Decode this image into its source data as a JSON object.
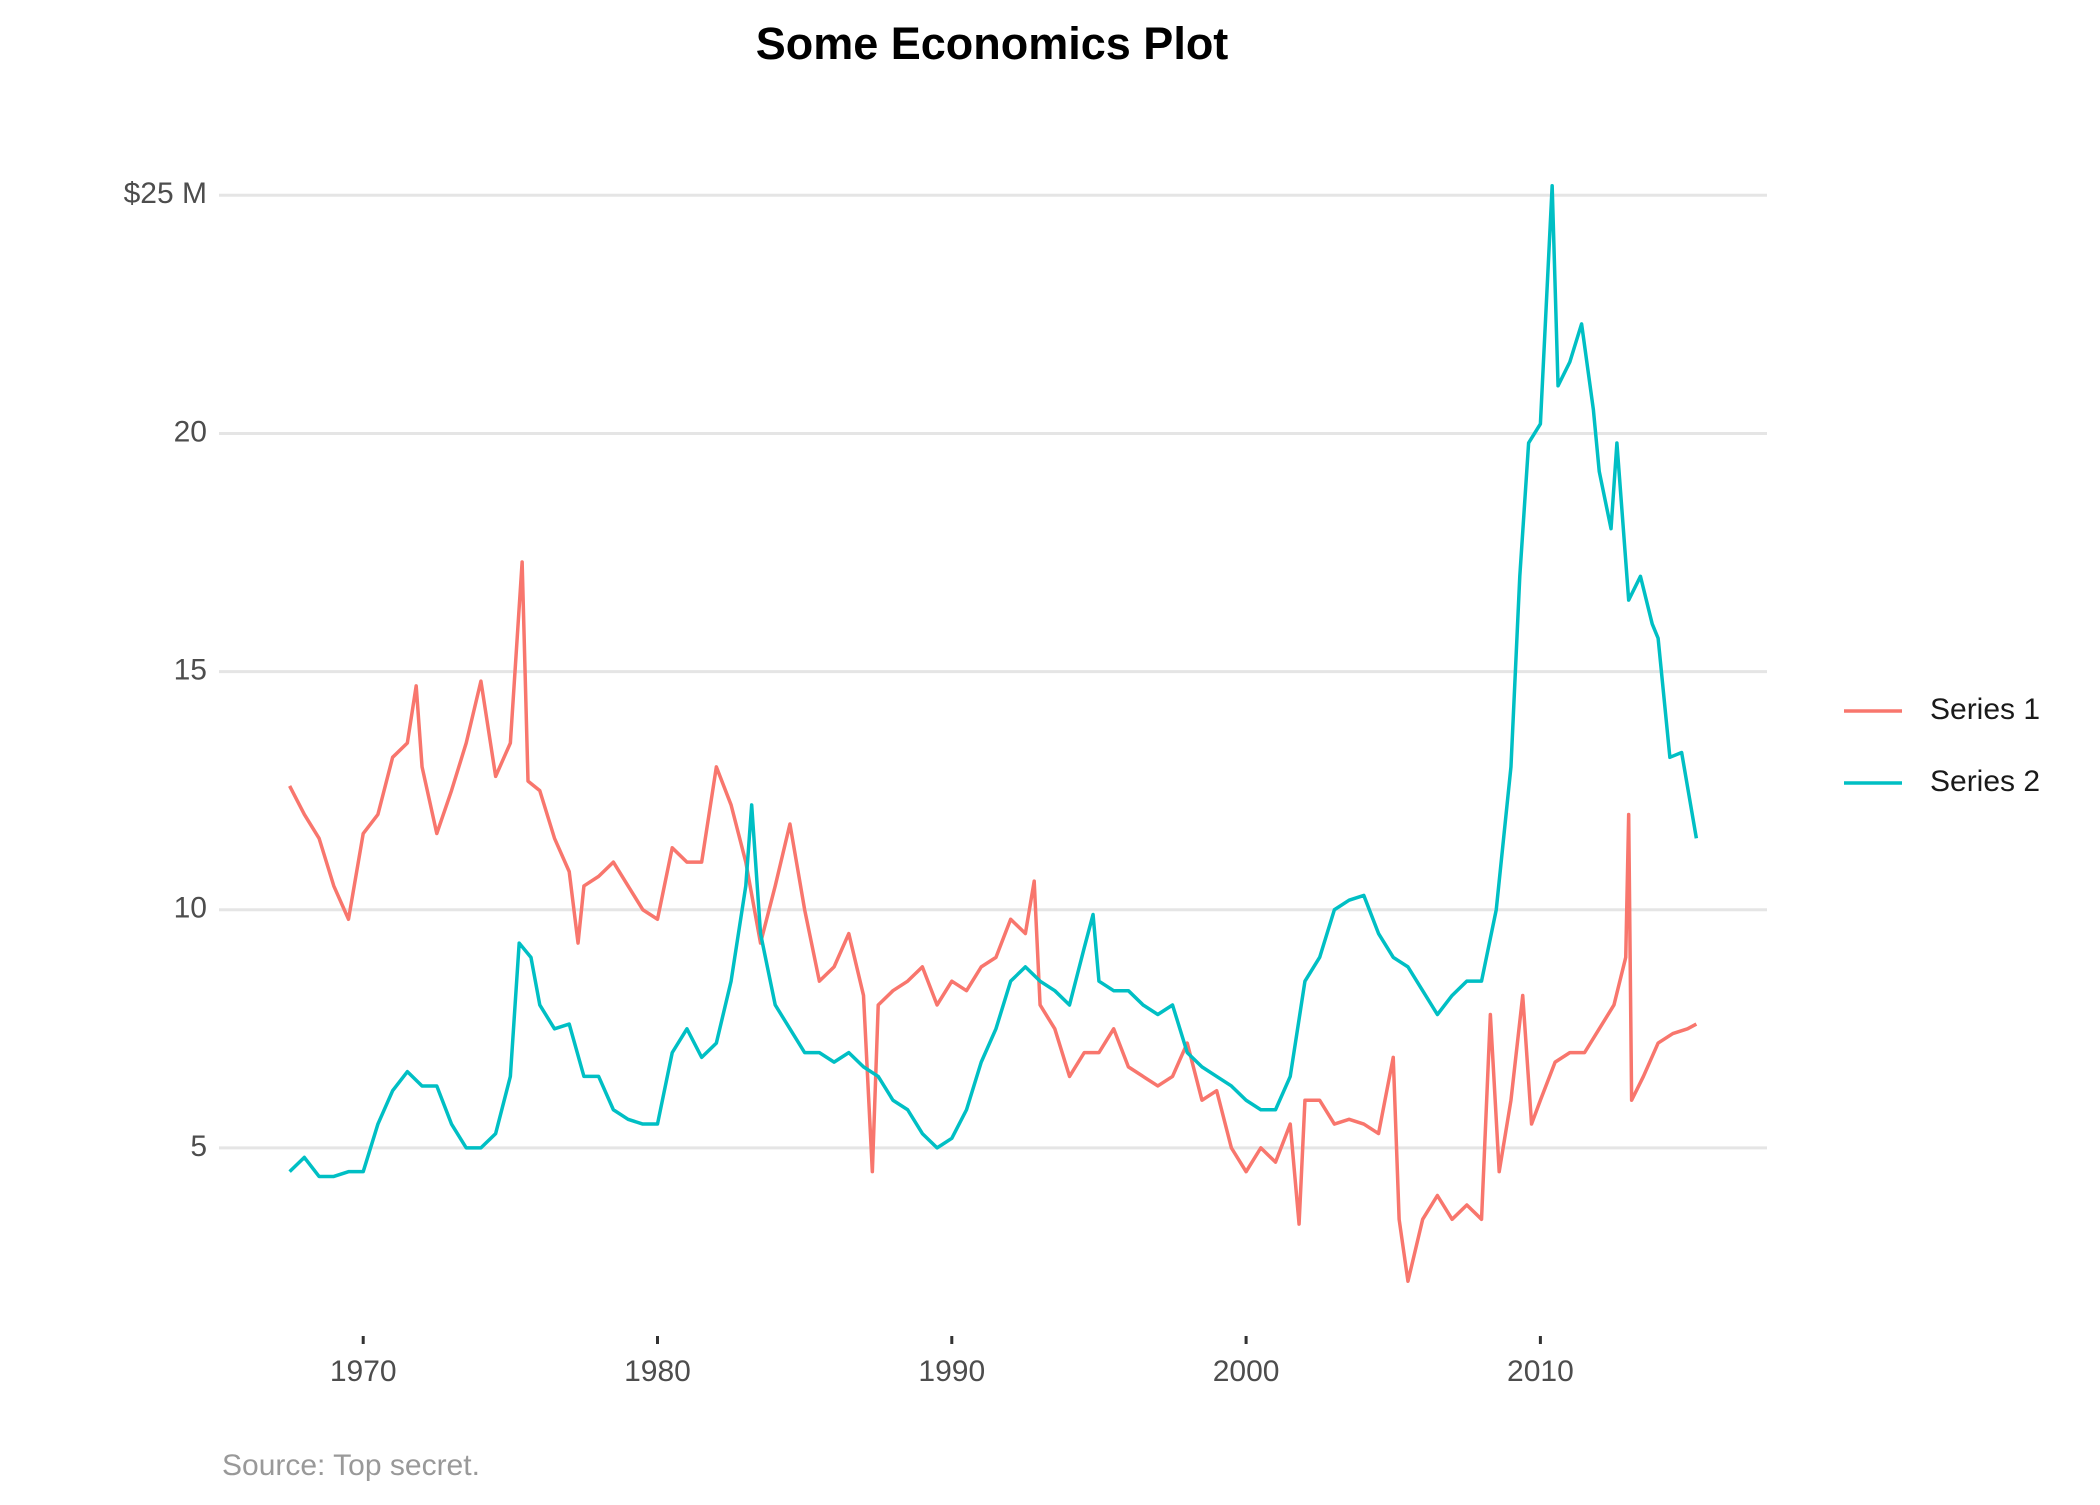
{
  "chart_data": {
    "type": "line",
    "title": "Some Economics Plot",
    "caption": "Source: Top secret.",
    "xlim": [
      1965.1,
      2017.7
    ],
    "xticks": [
      1970,
      1980,
      1990,
      2000,
      2010
    ],
    "ylim": [
      1.05,
      26.35
    ],
    "yticks": [
      5,
      10,
      15,
      20,
      {
        "value": 25,
        "label": "$25 M"
      }
    ],
    "grid": true,
    "legend": "right",
    "series": [
      {
        "name": "Series 1",
        "color": "#f8766d",
        "x": [
          1967.5,
          1968,
          1968.5,
          1969,
          1969.5,
          1970,
          1970.5,
          1971,
          1971.5,
          1971.8,
          1972,
          1972.5,
          1973,
          1973.5,
          1974,
          1974.5,
          1975,
          1975.4,
          1975.6,
          1976,
          1976.5,
          1977,
          1977.3,
          1977.5,
          1978,
          1978.5,
          1979,
          1979.5,
          1980,
          1980.5,
          1981,
          1981.5,
          1982,
          1982.5,
          1983,
          1983.5,
          1984,
          1984.5,
          1985,
          1985.5,
          1986,
          1986.5,
          1987,
          1987.3,
          1987.5,
          1988,
          1988.5,
          1989,
          1989.5,
          1990,
          1990.5,
          1991,
          1991.5,
          1992,
          1992.5,
          1992.8,
          1993,
          1993.5,
          1994,
          1994.5,
          1995,
          1995.5,
          1996,
          1996.5,
          1997,
          1997.5,
          1998,
          1998.5,
          1999,
          1999.5,
          2000,
          2000.5,
          2001,
          2001.5,
          2001.8,
          2002,
          2002.5,
          2003,
          2003.5,
          2004,
          2004.5,
          2005,
          2005.2,
          2005.5,
          2006,
          2006.5,
          2007,
          2007.5,
          2008,
          2008.3,
          2008.6,
          2009,
          2009.4,
          2009.7,
          2010,
          2010.5,
          2011,
          2011.5,
          2012,
          2012.5,
          2012.9,
          2013,
          2013.1,
          2013.5,
          2014,
          2014.5,
          2015,
          2015.3
        ],
        "values": [
          12.6,
          12.0,
          11.5,
          10.5,
          9.8,
          11.6,
          12.0,
          13.2,
          13.5,
          14.7,
          13.0,
          11.6,
          12.5,
          13.5,
          14.8,
          12.8,
          13.5,
          17.3,
          12.7,
          12.5,
          11.5,
          10.8,
          9.3,
          10.5,
          10.7,
          11.0,
          10.5,
          10.0,
          9.8,
          11.3,
          11.0,
          11.0,
          13.0,
          12.2,
          11.0,
          9.3,
          10.5,
          11.8,
          10.0,
          8.5,
          8.8,
          9.5,
          8.2,
          4.5,
          8.0,
          8.3,
          8.5,
          8.8,
          8.0,
          8.5,
          8.3,
          8.8,
          9.0,
          9.8,
          9.5,
          10.6,
          8.0,
          7.5,
          6.5,
          7.0,
          7.0,
          7.5,
          6.7,
          6.5,
          6.3,
          6.5,
          7.2,
          6.0,
          6.2,
          5.0,
          4.5,
          5.0,
          4.7,
          5.5,
          3.4,
          6.0,
          6.0,
          5.5,
          5.6,
          5.5,
          5.3,
          6.9,
          3.5,
          2.2,
          3.5,
          4.0,
          3.5,
          3.8,
          3.5,
          7.8,
          4.5,
          6.0,
          8.2,
          5.5,
          6.0,
          6.8,
          7.0,
          7.0,
          7.5,
          8.0,
          9.0,
          12.0,
          6.0,
          6.5,
          7.2,
          7.4,
          7.5,
          7.6
        ]
      },
      {
        "name": "Series 2",
        "color": "#00bfc4",
        "x": [
          1967.5,
          1968,
          1968.5,
          1969,
          1969.5,
          1970,
          1970.5,
          1971,
          1971.5,
          1972,
          1972.5,
          1973,
          1973.5,
          1974,
          1974.5,
          1975,
          1975.3,
          1975.7,
          1976,
          1976.5,
          1977,
          1977.5,
          1978,
          1978.5,
          1979,
          1979.5,
          1980,
          1980.5,
          1981,
          1981.5,
          1982,
          1982.5,
          1983,
          1983.2,
          1983.5,
          1984,
          1984.5,
          1985,
          1985.5,
          1986,
          1986.5,
          1987,
          1987.5,
          1988,
          1988.5,
          1989,
          1989.5,
          1990,
          1990.5,
          1991,
          1991.5,
          1992,
          1992.5,
          1993,
          1993.5,
          1994,
          1994.5,
          1994.8,
          1995,
          1995.5,
          1996,
          1996.5,
          1997,
          1997.5,
          1998,
          1998.5,
          1999,
          1999.5,
          2000,
          2000.5,
          2001,
          2001.5,
          2002,
          2002.5,
          2003,
          2003.5,
          2004,
          2004.5,
          2005,
          2005.5,
          2006,
          2006.5,
          2007,
          2007.5,
          2008,
          2008.5,
          2009,
          2009.3,
          2009.6,
          2010,
          2010.4,
          2010.6,
          2011,
          2011.4,
          2011.8,
          2012,
          2012.4,
          2012.6,
          2013,
          2013.4,
          2013.8,
          2014,
          2014.4,
          2014.8,
          2015.3
        ],
        "values": [
          4.5,
          4.8,
          4.4,
          4.4,
          4.5,
          4.5,
          5.5,
          6.2,
          6.6,
          6.3,
          6.3,
          5.5,
          5.0,
          5.0,
          5.3,
          6.5,
          9.3,
          9.0,
          8.0,
          7.5,
          7.6,
          6.5,
          6.5,
          5.8,
          5.6,
          5.5,
          5.5,
          7.0,
          7.5,
          6.9,
          7.2,
          8.5,
          10.5,
          12.2,
          9.5,
          8.0,
          7.5,
          7.0,
          7.0,
          6.8,
          7.0,
          6.7,
          6.5,
          6.0,
          5.8,
          5.3,
          5.0,
          5.2,
          5.8,
          6.8,
          7.5,
          8.5,
          8.8,
          8.5,
          8.3,
          8.0,
          9.2,
          9.9,
          8.5,
          8.3,
          8.3,
          8.0,
          7.8,
          8.0,
          7.0,
          6.7,
          6.5,
          6.3,
          6.0,
          5.8,
          5.8,
          6.5,
          8.5,
          9.0,
          10.0,
          10.2,
          10.3,
          9.5,
          9.0,
          8.8,
          8.3,
          7.8,
          8.2,
          8.5,
          8.5,
          10.0,
          13.0,
          17.0,
          19.8,
          20.2,
          25.2,
          21.0,
          21.5,
          22.3,
          20.5,
          19.2,
          18.0,
          19.8,
          16.5,
          17.0,
          16.0,
          15.7,
          13.2,
          13.3,
          11.5
        ]
      }
    ]
  }
}
